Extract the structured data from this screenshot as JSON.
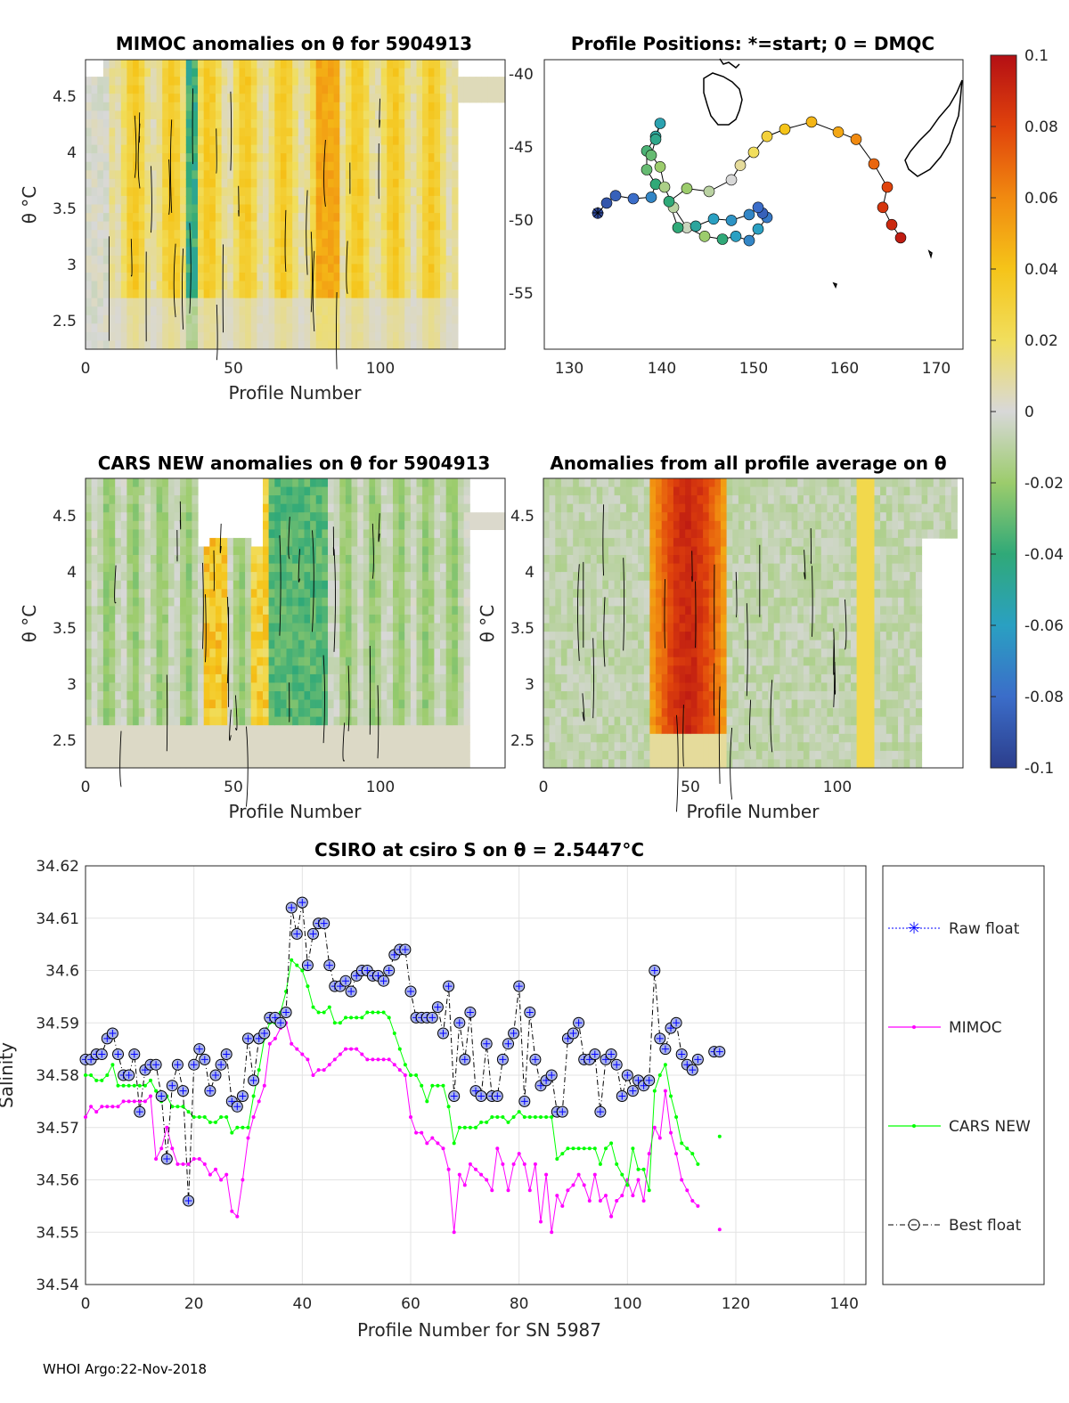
{
  "footer": "WHOI Argo:22-Nov-2018",
  "colorbar": {
    "ticks": [
      "0.1",
      "0.08",
      "0.06",
      "0.04",
      "0.02",
      "0",
      "-0.02",
      "-0.04",
      "-0.06",
      "-0.08",
      "-0.1"
    ],
    "range": [
      -0.1,
      0.1
    ]
  },
  "chart_data": [
    {
      "type": "heatmap",
      "title": "MIMOC anomalies on θ  for 5904913",
      "xlabel": "Profile Number",
      "ylabel": "θ °C",
      "xticks": [
        "0",
        "50",
        "100"
      ],
      "yticks": [
        "2.5",
        "3",
        "3.5",
        "4",
        "4.5"
      ],
      "xlim": [
        0,
        142
      ],
      "ylim": [
        2.25,
        4.8
      ],
      "note": "Salinity anomaly field with black contours; mostly positive (yellow/orange) 0.01–0.07, a negative band near profile 35–37"
    },
    {
      "type": "scatter",
      "title": "Profile Positions: *=start; 0 = DMQC",
      "xticks": [
        "130",
        "140",
        "150",
        "160",
        "170"
      ],
      "yticks": [
        "-40",
        "-45",
        "-50",
        "-55"
      ],
      "xlim": [
        126,
        173
      ],
      "ylim": [
        -59,
        -39
      ],
      "track_lon": [
        132,
        133,
        134,
        136,
        138,
        138.5,
        137.5,
        137.5,
        138.5,
        139,
        138.5,
        138,
        139,
        139.5,
        140.5,
        142,
        144,
        146,
        147.5,
        149,
        150,
        151,
        150.5,
        150,
        149,
        147,
        145,
        143,
        141,
        140,
        142,
        144.5,
        147,
        148,
        149.5,
        151,
        153,
        156,
        159,
        161,
        163,
        164.5,
        164,
        165,
        166
      ],
      "track_lat": [
        -49.6,
        -48.9,
        -48.4,
        -48.6,
        -48.5,
        -47.6,
        -46.6,
        -45.3,
        -44.3,
        -43.4,
        -44.5,
        -45.6,
        -46.4,
        -47.8,
        -49.2,
        -50.6,
        -51.2,
        -51.4,
        -51.2,
        -51.5,
        -50.7,
        -49.9,
        -49.6,
        -49.2,
        -49.7,
        -50.1,
        -50.0,
        -50.5,
        -50.6,
        -48.8,
        -47.9,
        -48.1,
        -47.3,
        -46.3,
        -45.4,
        -44.3,
        -43.8,
        -43.3,
        -44.0,
        -44.5,
        -46.2,
        -47.8,
        -49.2,
        -50.4,
        -51.3
      ],
      "track_value": [
        -0.095,
        -0.09,
        -0.085,
        -0.08,
        -0.07,
        -0.04,
        -0.03,
        -0.035,
        -0.05,
        -0.055,
        -0.045,
        -0.03,
        -0.02,
        -0.015,
        -0.01,
        -0.005,
        -0.02,
        -0.04,
        -0.06,
        -0.07,
        -0.06,
        -0.075,
        -0.085,
        -0.08,
        -0.07,
        -0.065,
        -0.06,
        -0.05,
        -0.04,
        -0.04,
        -0.02,
        -0.01,
        0.0,
        0.01,
        0.02,
        0.03,
        0.04,
        0.045,
        0.05,
        0.06,
        0.07,
        0.08,
        0.085,
        0.09,
        0.095
      ]
    },
    {
      "type": "heatmap",
      "title": "CARS NEW anomalies on θ for 5904913",
      "xlabel": "Profile Number",
      "ylabel": "θ °C",
      "xticks": [
        "0",
        "50",
        "100"
      ],
      "yticks": [
        "2.5",
        "3",
        "3.5",
        "4",
        "4.5"
      ],
      "xlim": [
        0,
        142
      ],
      "ylim": [
        2.25,
        4.8
      ],
      "note": "Anomalies mostly near zero/negative (grey/green), positive streaks near profiles 40–45 and 55–60"
    },
    {
      "type": "heatmap",
      "title": "Anomalies from all profile average on θ",
      "xlabel": "Profile Number",
      "ylabel": "θ °C",
      "xticks": [
        "0",
        "50",
        "100"
      ],
      "yticks": [
        "2.5",
        "3",
        "3.5",
        "4",
        "4.5"
      ],
      "xlim": [
        0,
        142
      ],
      "ylim": [
        2.25,
        4.8
      ],
      "note": "Strong positive block (red, up to ~0.09) for profiles ~36–60, elsewhere near zero"
    },
    {
      "type": "line",
      "title": "CSIRO at csiro S on θ = 2.5447°C",
      "xlabel": "Profile Number for SN 5987",
      "ylabel": "Salinity",
      "xticks": [
        "0",
        "20",
        "40",
        "60",
        "80",
        "100",
        "120",
        "140"
      ],
      "yticks": [
        "34.54",
        "34.55",
        "34.56",
        "34.57",
        "34.58",
        "34.59",
        "34.6",
        "34.61",
        "34.62"
      ],
      "xlim": [
        0,
        144
      ],
      "ylim": [
        34.54,
        34.62
      ],
      "legend": [
        "Raw float",
        "MIMOC",
        "CARS NEW",
        "Best float"
      ],
      "series": [
        {
          "name": "Best float",
          "color": "#000000",
          "x": [
            0,
            1,
            2,
            3,
            4,
            5,
            6,
            7,
            8,
            9,
            10,
            11,
            12,
            13,
            14,
            15,
            16,
            17,
            18,
            19,
            20,
            21,
            22,
            23,
            24,
            25,
            26,
            27,
            28,
            29,
            30,
            31,
            32,
            33,
            34,
            35,
            36,
            37,
            38,
            39,
            40,
            41,
            42,
            43,
            44,
            45,
            46,
            47,
            48,
            49,
            50,
            51,
            52,
            53,
            54,
            55,
            56,
            57,
            58,
            59,
            60,
            61,
            62,
            63,
            64,
            65,
            66,
            67,
            68,
            69,
            70,
            71,
            72,
            73,
            74,
            75,
            76,
            77,
            78,
            79,
            80,
            81,
            82,
            83,
            84,
            85,
            86,
            87,
            88,
            89,
            90,
            91,
            92,
            93,
            94,
            95,
            96,
            97,
            98,
            99,
            100,
            101,
            102,
            103,
            104,
            105,
            106,
            107,
            108,
            109,
            110,
            111,
            112,
            113
          ],
          "values": [
            34.583,
            34.583,
            34.584,
            34.584,
            34.587,
            34.588,
            34.584,
            34.58,
            34.58,
            34.584,
            34.573,
            34.581,
            34.582,
            34.582,
            34.576,
            34.564,
            34.578,
            34.582,
            34.577,
            34.556,
            34.582,
            34.585,
            34.583,
            34.577,
            34.58,
            34.582,
            34.584,
            34.575,
            34.574,
            34.576,
            34.587,
            34.579,
            34.587,
            34.588,
            34.591,
            34.591,
            34.59,
            34.592,
            34.612,
            34.607,
            34.613,
            34.601,
            34.607,
            34.609,
            34.609,
            34.601,
            34.597,
            34.597,
            34.598,
            34.596,
            34.599,
            34.6,
            34.6,
            34.599,
            34.599,
            34.598,
            34.6,
            34.603,
            34.604,
            34.604,
            34.596,
            34.591,
            34.591,
            34.591,
            34.591,
            34.593,
            34.588,
            34.597,
            34.576,
            34.59,
            34.583,
            34.592,
            34.577,
            34.576,
            34.586,
            34.576,
            34.576,
            34.583,
            34.586,
            34.588,
            34.597,
            34.575,
            34.592,
            34.583,
            34.578,
            34.579,
            34.58,
            34.573,
            34.573,
            34.587,
            34.588,
            34.59,
            34.583,
            34.583,
            34.584,
            34.573,
            34.583,
            34.584,
            34.582,
            34.576,
            34.58,
            34.577,
            34.579,
            34.578,
            34.579,
            34.6,
            34.587,
            34.585,
            34.589,
            34.59,
            34.584,
            34.582,
            34.581,
            34.583
          ]
        },
        {
          "name": "MIMOC",
          "color": "#ff00ff",
          "x": [
            0,
            1,
            2,
            3,
            4,
            5,
            6,
            7,
            8,
            9,
            10,
            11,
            12,
            13,
            14,
            15,
            16,
            17,
            18,
            19,
            20,
            21,
            22,
            23,
            24,
            25,
            26,
            27,
            28,
            29,
            30,
            31,
            32,
            33,
            34,
            35,
            36,
            37,
            38,
            39,
            40,
            41,
            42,
            43,
            44,
            45,
            46,
            47,
            48,
            49,
            50,
            51,
            52,
            53,
            54,
            55,
            56,
            57,
            58,
            59,
            60,
            61,
            62,
            63,
            64,
            65,
            66,
            67,
            68,
            69,
            70,
            71,
            72,
            73,
            74,
            75,
            76,
            77,
            78,
            79,
            80,
            81,
            82,
            83,
            84,
            85,
            86,
            87,
            88,
            89,
            90,
            91,
            92,
            93,
            94,
            95,
            96,
            97,
            98,
            99,
            100,
            101,
            102,
            103,
            104,
            105,
            106,
            107,
            108,
            109,
            110,
            111,
            112,
            113
          ],
          "values": [
            34.572,
            34.574,
            34.573,
            34.574,
            34.574,
            34.574,
            34.574,
            34.575,
            34.575,
            34.575,
            34.575,
            34.575,
            34.576,
            34.564,
            34.566,
            34.57,
            34.566,
            34.563,
            34.563,
            34.563,
            34.564,
            34.564,
            34.563,
            34.561,
            34.562,
            34.56,
            34.561,
            34.554,
            34.553,
            34.56,
            34.568,
            34.572,
            34.575,
            34.578,
            34.586,
            34.587,
            34.589,
            34.59,
            34.586,
            34.585,
            34.584,
            34.583,
            34.58,
            34.581,
            34.581,
            34.582,
            34.583,
            34.584,
            34.585,
            34.585,
            34.585,
            34.584,
            34.583,
            34.583,
            34.583,
            34.583,
            34.583,
            34.582,
            34.581,
            34.58,
            34.572,
            34.569,
            34.569,
            34.567,
            34.568,
            34.567,
            34.566,
            34.562,
            34.55,
            34.561,
            34.559,
            34.563,
            34.562,
            34.561,
            34.56,
            34.558,
            34.566,
            34.563,
            34.558,
            34.563,
            34.565,
            34.563,
            34.558,
            34.563,
            34.552,
            34.561,
            34.55,
            34.557,
            34.555,
            34.558,
            34.559,
            34.561,
            34.559,
            34.556,
            34.561,
            34.556,
            34.557,
            34.553,
            34.556,
            34.557,
            34.56,
            34.557,
            34.56,
            34.556,
            34.565,
            34.57,
            34.568,
            34.577,
            34.569,
            34.565,
            34.56,
            34.558,
            34.556,
            34.555
          ]
        },
        {
          "name": "CARS NEW",
          "color": "#00ff00",
          "x": [
            0,
            1,
            2,
            3,
            4,
            5,
            6,
            7,
            8,
            9,
            10,
            11,
            12,
            13,
            14,
            15,
            16,
            17,
            18,
            19,
            20,
            21,
            22,
            23,
            24,
            25,
            26,
            27,
            28,
            29,
            30,
            31,
            32,
            33,
            34,
            35,
            36,
            37,
            38,
            39,
            40,
            41,
            42,
            43,
            44,
            45,
            46,
            47,
            48,
            49,
            50,
            51,
            52,
            53,
            54,
            55,
            56,
            57,
            58,
            59,
            60,
            61,
            62,
            63,
            64,
            65,
            66,
            67,
            68,
            69,
            70,
            71,
            72,
            73,
            74,
            75,
            76,
            77,
            78,
            79,
            80,
            81,
            82,
            83,
            84,
            85,
            86,
            87,
            88,
            89,
            90,
            91,
            92,
            93,
            94,
            95,
            96,
            97,
            98,
            99,
            100,
            101,
            102,
            103,
            104,
            105,
            106,
            107,
            108,
            109,
            110,
            111,
            112,
            113
          ],
          "values": [
            34.58,
            34.58,
            34.579,
            34.579,
            34.58,
            34.582,
            34.578,
            34.578,
            34.578,
            34.578,
            34.578,
            34.578,
            34.579,
            34.577,
            34.575,
            34.576,
            34.574,
            34.574,
            34.574,
            34.573,
            34.572,
            34.572,
            34.572,
            34.571,
            34.571,
            34.572,
            34.572,
            34.569,
            34.57,
            34.57,
            34.57,
            34.576,
            34.581,
            34.587,
            34.59,
            34.59,
            34.592,
            34.596,
            34.602,
            34.601,
            34.6,
            34.597,
            34.593,
            34.592,
            34.592,
            34.593,
            34.59,
            34.59,
            34.591,
            34.591,
            34.591,
            34.591,
            34.592,
            34.592,
            34.592,
            34.592,
            34.591,
            34.588,
            34.585,
            34.582,
            34.58,
            34.58,
            34.578,
            34.575,
            34.578,
            34.578,
            34.578,
            34.574,
            34.567,
            34.57,
            34.57,
            34.57,
            34.57,
            34.571,
            34.571,
            34.572,
            34.572,
            34.572,
            34.571,
            34.572,
            34.573,
            34.572,
            34.572,
            34.572,
            34.572,
            34.572,
            34.572,
            34.564,
            34.565,
            34.566,
            34.566,
            34.566,
            34.566,
            34.566,
            34.566,
            34.563,
            34.566,
            34.567,
            34.563,
            34.561,
            34.559,
            34.566,
            34.562,
            34.562,
            34.558,
            34.577,
            34.58,
            34.582,
            34.576,
            34.572,
            34.567,
            34.566,
            34.565,
            34.563
          ]
        }
      ],
      "isolated_points": [
        {
          "series": "Best float",
          "x": 116,
          "value": 34.5845
        },
        {
          "series": "Best float",
          "x": 117,
          "value": 34.5845
        },
        {
          "series": "MIMOC",
          "x": 117,
          "value": 34.5505
        },
        {
          "series": "CARS NEW",
          "x": 117,
          "value": 34.5683
        }
      ]
    }
  ]
}
